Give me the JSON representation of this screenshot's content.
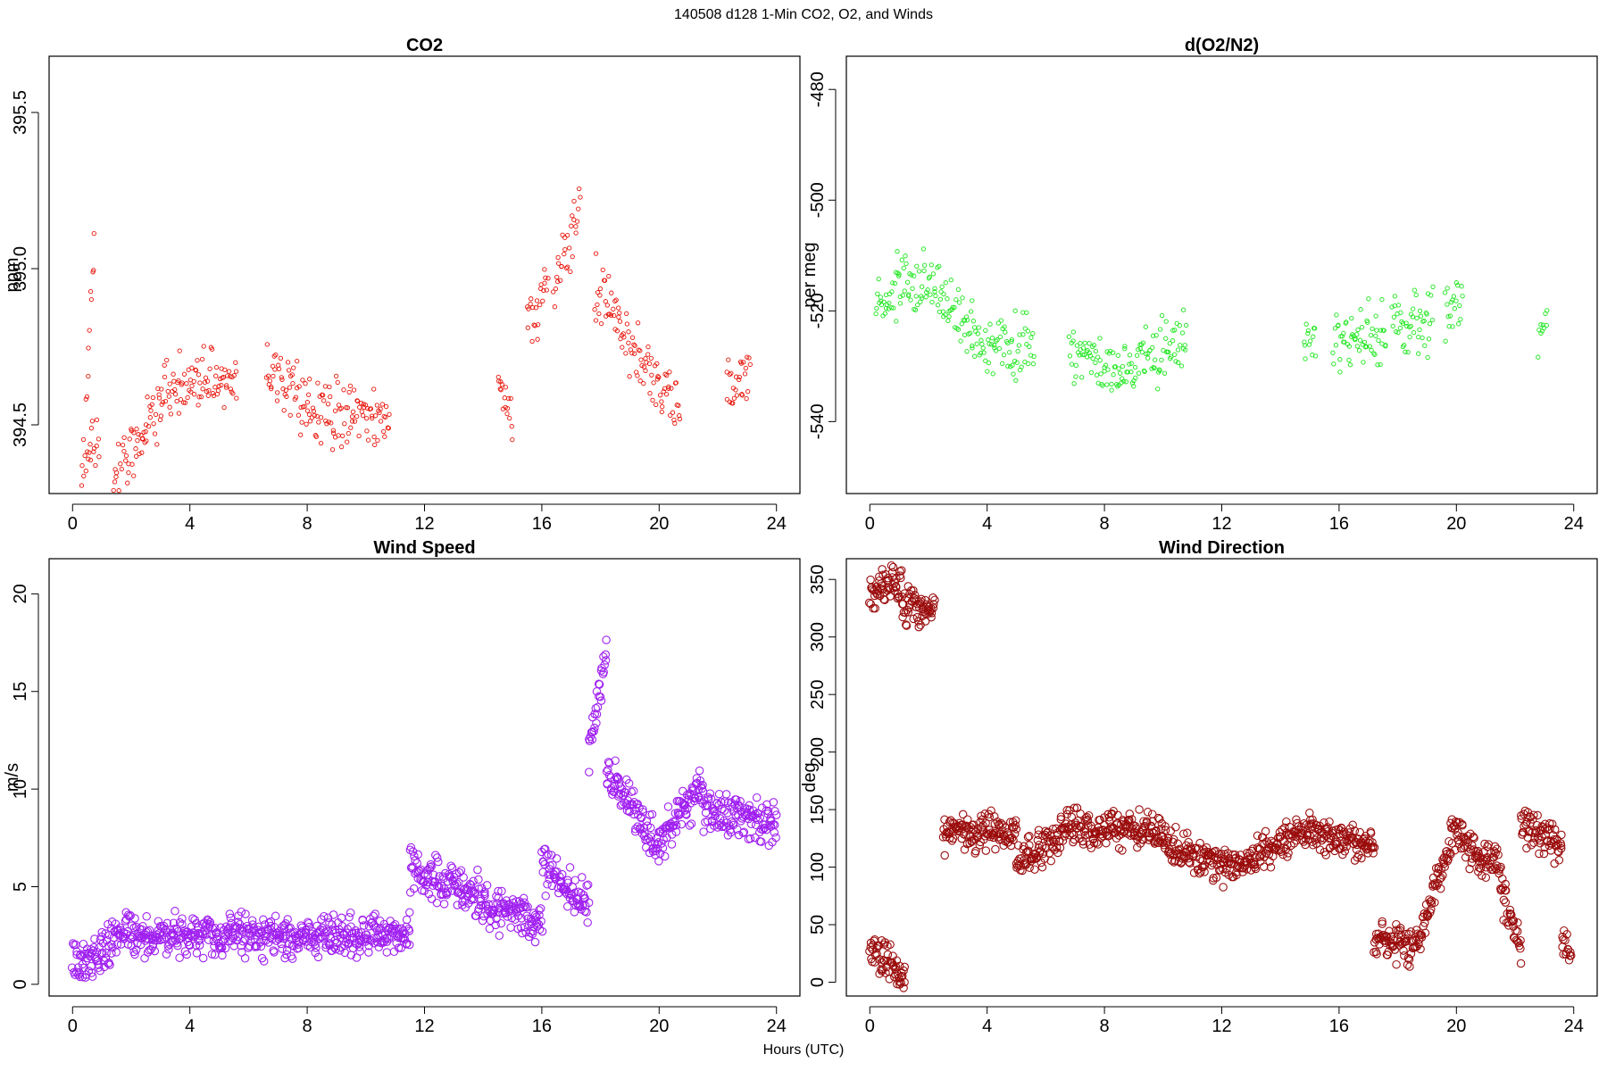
{
  "figure": {
    "title": "140508   d128   1-Min CO2, O2, and Winds",
    "xlabel": "Hours (UTC)"
  },
  "chart_data": [
    {
      "id": "co2",
      "type": "scatter",
      "title": "CO2",
      "xlabel": "",
      "ylabel": "ppm",
      "xlim": [
        -0.8,
        24.8
      ],
      "ylim": [
        394.28,
        395.68
      ],
      "xticks": [
        0,
        4,
        8,
        12,
        16,
        20,
        24
      ],
      "yticks": [
        394.5,
        395.0,
        395.5
      ],
      "ytick_labels": [
        "394.5",
        "395.0",
        "395.5"
      ],
      "marker_color": "#e8140a",
      "marker_size": "small",
      "grid": false,
      "segments": [
        {
          "x": [
            0.3,
            0.9
          ],
          "y": [
            394.4,
            394.45
          ]
        },
        {
          "x": [
            0.45,
            0.75
          ],
          "y": [
            394.55,
            395.1
          ]
        },
        {
          "x": [
            1.4,
            2.5
          ],
          "y": [
            394.33,
            394.5
          ]
        },
        {
          "x": [
            2.5,
            3.0
          ],
          "y": [
            394.5,
            394.58
          ]
        },
        {
          "x": [
            3.0,
            5.6
          ],
          "y": [
            394.6,
            394.67
          ]
        },
        {
          "x": [
            6.6,
            8.0
          ],
          "y": [
            394.66,
            394.58
          ]
        },
        {
          "x": [
            8.0,
            10.8
          ],
          "y": [
            394.55,
            394.52
          ]
        },
        {
          "x": [
            14.5,
            15.0
          ],
          "y": [
            394.6,
            394.55
          ]
        },
        {
          "x": [
            15.5,
            16.2
          ],
          "y": [
            394.8,
            394.95
          ]
        },
        {
          "x": [
            16.4,
            17.3
          ],
          "y": [
            394.95,
            395.2
          ]
        },
        {
          "x": [
            17.8,
            18.6
          ],
          "y": [
            394.95,
            394.85
          ]
        },
        {
          "x": [
            18.6,
            20.7
          ],
          "y": [
            394.8,
            394.57
          ]
        },
        {
          "x": [
            22.3,
            23.1
          ],
          "y": [
            394.6,
            394.7
          ]
        }
      ]
    },
    {
      "id": "o2",
      "type": "scatter",
      "title": "d(O2/N2)",
      "xlabel": "",
      "ylabel": "per meg",
      "xlim": [
        -0.8,
        24.8
      ],
      "ylim": [
        -553,
        -474
      ],
      "xticks": [
        0,
        4,
        8,
        12,
        16,
        20,
        24
      ],
      "yticks": [
        -540,
        -520,
        -500,
        -480
      ],
      "ytick_labels": [
        "-540",
        "-520",
        "-500",
        "-480"
      ],
      "marker_color": "#1de61d",
      "marker_size": "small",
      "grid": false,
      "segments": [
        {
          "x": [
            0.2,
            1.0
          ],
          "y": [
            -519,
            -516
          ]
        },
        {
          "x": [
            1.0,
            2.5
          ],
          "y": [
            -515,
            -516
          ]
        },
        {
          "x": [
            2.5,
            3.5
          ],
          "y": [
            -518,
            -524
          ]
        },
        {
          "x": [
            3.5,
            5.6
          ],
          "y": [
            -526,
            -527
          ]
        },
        {
          "x": [
            6.8,
            8.5
          ],
          "y": [
            -527,
            -531
          ]
        },
        {
          "x": [
            8.5,
            10.8
          ],
          "y": [
            -530,
            -525
          ]
        },
        {
          "x": [
            14.8,
            15.2
          ],
          "y": [
            -524,
            -526
          ]
        },
        {
          "x": [
            15.8,
            17.6
          ],
          "y": [
            -525,
            -524
          ]
        },
        {
          "x": [
            17.8,
            19.2
          ],
          "y": [
            -523,
            -521
          ]
        },
        {
          "x": [
            19.6,
            20.2
          ],
          "y": [
            -522,
            -520
          ]
        },
        {
          "x": [
            22.8,
            23.1
          ],
          "y": [
            -525,
            -524
          ]
        }
      ]
    },
    {
      "id": "wind-speed",
      "type": "scatter",
      "title": "Wind Speed",
      "xlabel": "",
      "ylabel": "m/s",
      "xlim": [
        -0.8,
        24.8
      ],
      "ylim": [
        -0.6,
        21.8
      ],
      "xticks": [
        0,
        4,
        8,
        12,
        16,
        20,
        24
      ],
      "yticks": [
        0,
        5,
        10,
        15,
        20
      ],
      "ytick_labels": [
        "0",
        "5",
        "10",
        "15",
        "20"
      ],
      "marker_color": "#a020f0",
      "marker_size": "large",
      "grid": false,
      "segments": [
        {
          "x": [
            0.0,
            1.2
          ],
          "y": [
            1.1,
            1.6
          ]
        },
        {
          "x": [
            1.2,
            2.0
          ],
          "y": [
            2.0,
            3.2
          ]
        },
        {
          "x": [
            2.0,
            11.5
          ],
          "y": [
            2.5,
            2.5
          ]
        },
        {
          "x": [
            11.5,
            16.0
          ],
          "y": [
            6.0,
            3.0
          ]
        },
        {
          "x": [
            16.0,
            17.6
          ],
          "y": [
            6.0,
            4.0
          ]
        },
        {
          "x": [
            17.6,
            18.2
          ],
          "y": [
            12.0,
            17.0
          ]
        },
        {
          "x": [
            18.2,
            20.0
          ],
          "y": [
            11.0,
            7.0
          ]
        },
        {
          "x": [
            20.0,
            21.5
          ],
          "y": [
            7.0,
            10.5
          ]
        },
        {
          "x": [
            21.5,
            24.0
          ],
          "y": [
            9.0,
            8.0
          ]
        }
      ]
    },
    {
      "id": "wind-direction",
      "type": "scatter",
      "title": "Wind Direction",
      "xlabel": "",
      "ylabel": "deg",
      "xlim": [
        -0.8,
        24.8
      ],
      "ylim": [
        -12,
        368
      ],
      "xticks": [
        0,
        4,
        8,
        12,
        16,
        20,
        24
      ],
      "yticks": [
        0,
        50,
        100,
        150,
        200,
        250,
        300,
        350
      ],
      "ytick_labels": [
        "0",
        "50",
        "100",
        "150",
        "200",
        "250",
        "300",
        "350"
      ],
      "marker_color": "#9b0c0c",
      "marker_size": "large",
      "grid": false,
      "segments": [
        {
          "x": [
            0.0,
            1.1
          ],
          "y": [
            340,
            350
          ]
        },
        {
          "x": [
            1.1,
            2.2
          ],
          "y": [
            327,
            325
          ]
        },
        {
          "x": [
            0.0,
            1.2
          ],
          "y": [
            30,
            5
          ]
        },
        {
          "x": [
            2.5,
            5.0
          ],
          "y": [
            128,
            130
          ]
        },
        {
          "x": [
            5.0,
            6.5
          ],
          "y": [
            105,
            125
          ]
        },
        {
          "x": [
            6.5,
            10.0
          ],
          "y": [
            135,
            130
          ]
        },
        {
          "x": [
            10.0,
            12.5
          ],
          "y": [
            120,
            100
          ]
        },
        {
          "x": [
            12.5,
            15.0
          ],
          "y": [
            100,
            135
          ]
        },
        {
          "x": [
            15.0,
            17.2
          ],
          "y": [
            130,
            120
          ]
        },
        {
          "x": [
            17.2,
            18.8
          ],
          "y": [
            40,
            30
          ]
        },
        {
          "x": [
            18.8,
            19.8
          ],
          "y": [
            50,
            120
          ]
        },
        {
          "x": [
            19.8,
            21.5
          ],
          "y": [
            130,
            100
          ]
        },
        {
          "x": [
            21.5,
            22.2
          ],
          "y": [
            80,
            30
          ]
        },
        {
          "x": [
            22.2,
            23.6
          ],
          "y": [
            140,
            115
          ]
        },
        {
          "x": [
            23.6,
            23.9
          ],
          "y": [
            35,
            25
          ]
        }
      ]
    }
  ]
}
